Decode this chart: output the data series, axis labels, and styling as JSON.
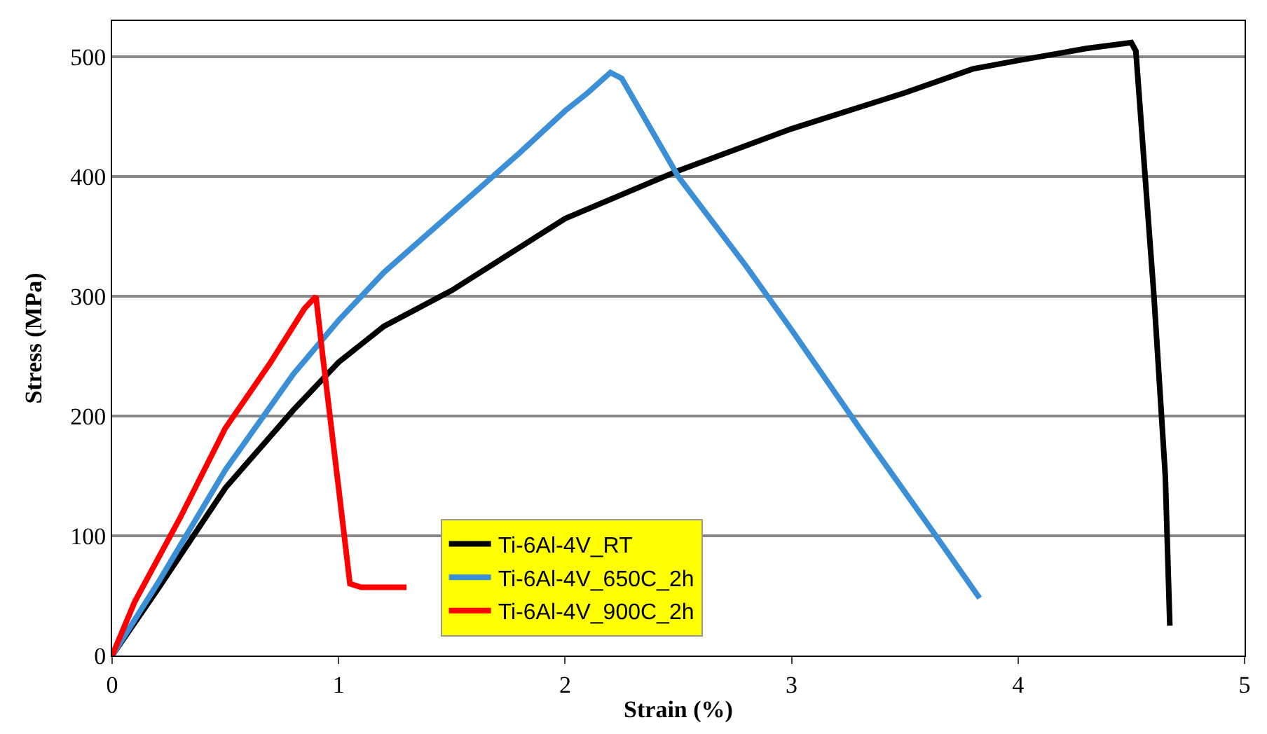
{
  "chart_data": {
    "type": "line",
    "xlabel": "Strain (%)",
    "ylabel": "Stress (MPa)",
    "xlim": [
      0,
      5
    ],
    "xticks": [
      0,
      1,
      2,
      3,
      4,
      5
    ],
    "ylim": [
      0,
      530
    ],
    "yticks": [
      0,
      100,
      200,
      300,
      400,
      500
    ],
    "grid": "y",
    "legend": "bottom",
    "marker": "none",
    "line_style": "solid",
    "series": [
      {
        "name": "Ti-6Al-4V_RT",
        "color": "#000000",
        "x": [
          0,
          0.2,
          0.5,
          0.8,
          1.0,
          1.2,
          1.5,
          2.0,
          2.5,
          3.0,
          3.5,
          3.8,
          4.0,
          4.3,
          4.5,
          4.52,
          4.6,
          4.65,
          4.67
        ],
        "values": [
          0,
          55,
          140,
          205,
          245,
          275,
          305,
          365,
          405,
          440,
          470,
          490,
          497,
          507,
          512,
          505,
          300,
          150,
          25
        ]
      },
      {
        "name": "Ti-6Al-4V_650C_2h",
        "color": "#3a8fd6",
        "x": [
          0,
          0.2,
          0.5,
          0.8,
          1.0,
          1.2,
          1.5,
          1.8,
          2.0,
          2.1,
          2.2,
          2.25,
          2.5,
          2.8,
          3.0,
          3.3,
          3.6,
          3.83
        ],
        "values": [
          0,
          60,
          155,
          235,
          280,
          320,
          370,
          420,
          455,
          470,
          487,
          482,
          400,
          325,
          272,
          190,
          110,
          48
        ]
      },
      {
        "name": "Ti-6Al-4V_900C_2h",
        "color": "#ff0000",
        "x": [
          0,
          0.1,
          0.3,
          0.5,
          0.7,
          0.85,
          0.9,
          0.93,
          1.0,
          1.05,
          1.1,
          1.3
        ],
        "values": [
          0,
          45,
          115,
          190,
          245,
          290,
          300,
          250,
          140,
          60,
          57,
          57
        ]
      }
    ]
  }
}
